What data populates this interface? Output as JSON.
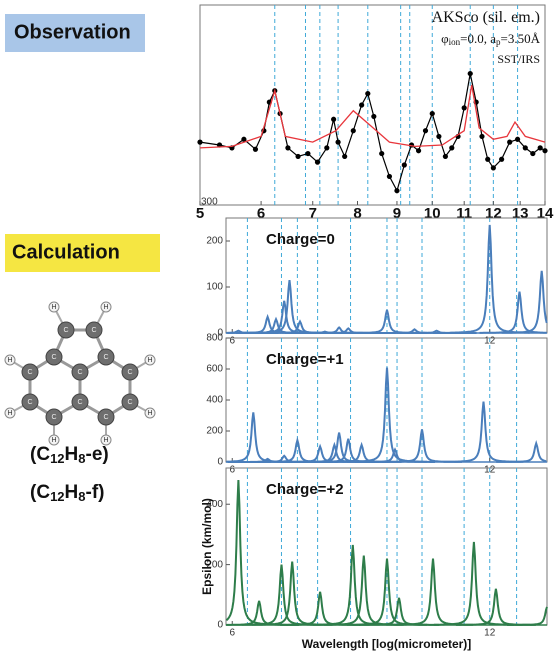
{
  "labels": {
    "observation": "Observation",
    "calculation": "Calculation"
  },
  "molecule": {
    "carbon": "C",
    "hydrogen": "H"
  },
  "formulas": [
    [
      "(C",
      "12",
      "H",
      "8",
      "-e)"
    ],
    [
      "(C",
      "12",
      "H",
      "8",
      "-f)"
    ]
  ],
  "chart_data": [
    {
      "type": "line",
      "annotations": [
        [
          "AKSco (sil. em.)"
        ],
        [
          "φ",
          "ion",
          "=0.0, a",
          "p",
          "=3.50Å"
        ],
        [
          "SST/IRS"
        ]
      ],
      "log_x": true,
      "xlim": [
        5,
        14
      ],
      "xticks": [
        5,
        6,
        7,
        8,
        9,
        10,
        11,
        12,
        13,
        14
      ],
      "ylim": [
        300,
        1000
      ],
      "yticks": [
        300
      ],
      "guides": {
        "color": "#3fa9d8",
        "x": [
          6.25,
          6.85,
          7.15,
          7.55,
          8.25,
          9.1,
          9.35,
          10.0,
          11.2,
          12.0,
          12.9
        ]
      },
      "series": [
        {
          "color": "#000000",
          "markers": true,
          "x": [
            5.0,
            5.3,
            5.5,
            5.7,
            5.9,
            6.05,
            6.15,
            6.25,
            6.35,
            6.5,
            6.7,
            6.9,
            7.1,
            7.3,
            7.45,
            7.55,
            7.7,
            7.9,
            8.1,
            8.25,
            8.4,
            8.6,
            8.8,
            9.0,
            9.2,
            9.4,
            9.6,
            9.8,
            10.0,
            10.2,
            10.4,
            10.6,
            10.8,
            11.0,
            11.2,
            11.4,
            11.6,
            11.8,
            12.0,
            12.3,
            12.6,
            12.9,
            13.2,
            13.5,
            13.8,
            14.0
          ],
          "values": [
            520,
            510,
            500,
            530,
            495,
            560,
            660,
            700,
            620,
            500,
            470,
            480,
            450,
            500,
            600,
            520,
            470,
            560,
            650,
            690,
            610,
            480,
            400,
            350,
            440,
            510,
            490,
            560,
            620,
            540,
            470,
            500,
            540,
            640,
            760,
            660,
            540,
            460,
            430,
            460,
            520,
            530,
            500,
            480,
            500,
            490
          ]
        },
        {
          "color": "#e8363c",
          "markers": false,
          "x": [
            5.0,
            5.5,
            6.0,
            6.25,
            6.45,
            7.0,
            7.5,
            7.9,
            8.3,
            8.8,
            9.5,
            10.3,
            11.0,
            11.25,
            11.5,
            12.0,
            12.5,
            12.8,
            13.2,
            14.0
          ],
          "values": [
            500,
            505,
            540,
            700,
            540,
            520,
            560,
            630,
            580,
            520,
            505,
            510,
            560,
            720,
            570,
            530,
            540,
            590,
            540,
            520
          ]
        }
      ]
    },
    {
      "type": "peaks",
      "annotation": "Charge=0",
      "color": "#4a7ebb",
      "log_x": true,
      "xlim": [
        5.9,
        14
      ],
      "xticks": [
        6,
        12
      ],
      "ylim": [
        0,
        250
      ],
      "yticks": [
        0,
        100,
        200
      ],
      "x": [
        6.1,
        6.6,
        6.75,
        6.9,
        7.0,
        7.2,
        7.7,
        8.0,
        8.2,
        9.1,
        9.8,
        10.4,
        12.0,
        13.0,
        13.8
      ],
      "values": [
        5,
        35,
        30,
        70,
        115,
        25,
        3,
        12,
        10,
        50,
        8,
        5,
        235,
        90,
        135
      ]
    },
    {
      "type": "peaks",
      "annotation": "Charge=+1",
      "color": "#4a7ebb",
      "log_x": true,
      "xlim": [
        5.9,
        14
      ],
      "xticks": [
        6,
        12
      ],
      "ylim": [
        0,
        800
      ],
      "yticks": [
        0,
        200,
        400,
        600,
        800
      ],
      "x": [
        6.35,
        6.6,
        6.9,
        7.15,
        7.6,
        7.9,
        8.0,
        8.2,
        8.5,
        9.1,
        9.3,
        10.0,
        11.8,
        13.6
      ],
      "values": [
        320,
        20,
        40,
        140,
        100,
        110,
        190,
        150,
        110,
        610,
        80,
        210,
        390,
        120
      ]
    },
    {
      "type": "peaks",
      "annotation": "Charge=+2",
      "color": "#2e7d4a",
      "log_x": true,
      "xlim": [
        5.9,
        14
      ],
      "xticks": [
        6,
        12
      ],
      "ylim": [
        0,
        520
      ],
      "yticks": [
        0,
        200,
        400
      ],
      "xlabel": "Wavelength [log(micrometer)]",
      "ylabel": "Epsilon (km/mol)",
      "x": [
        6.1,
        6.45,
        6.85,
        7.05,
        7.6,
        8.3,
        8.55,
        9.1,
        9.4,
        10.3,
        11.5,
        12.2,
        14.0
      ],
      "values": [
        480,
        80,
        200,
        210,
        110,
        265,
        230,
        220,
        90,
        220,
        275,
        120,
        60
      ]
    }
  ]
}
